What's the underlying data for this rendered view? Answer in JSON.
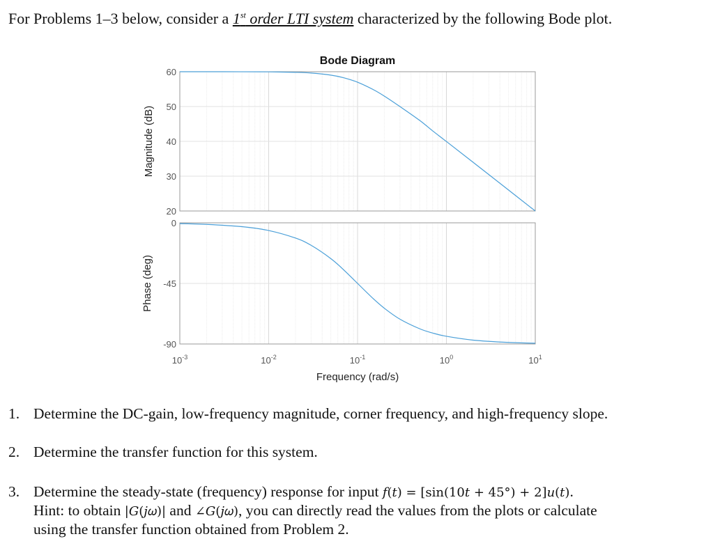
{
  "intro": {
    "before": "For Problems 1–3 below, consider a ",
    "ordinal": "1",
    "ordinal_sup": "st",
    "emphasis": " order LTI system",
    "after": " characterized by the following Bode plot."
  },
  "problems": [
    {
      "number": "1.",
      "text": "Determine the DC-gain, low-frequency magnitude, corner frequency, and high-frequency slope."
    },
    {
      "number": "2.",
      "text": "Determine the transfer function for this system."
    },
    {
      "number": "3.",
      "text": "Determine the steady-state (frequency) response for input ",
      "math": "𝑓(𝑡) = [sin(10𝑡 + 45°) + 2]𝑢(𝑡)",
      "end": ".",
      "hint_a": "Hint: to obtain ",
      "hint_m1": "|𝐺(𝑗𝜔)|",
      "hint_b": " and ",
      "hint_m2": "∠𝐺(𝑗𝜔)",
      "hint_c": ", you can directly read the values from the plots or calculate",
      "hint_line2": "using the transfer function obtained from Problem 2."
    }
  ],
  "chart_data": {
    "type": "line",
    "title": "Bode Diagram",
    "xlabel": "Frequency  (rad/s)",
    "xscale": "log",
    "xlim": [
      0.001,
      10
    ],
    "xticks": [
      {
        "base": "10",
        "exp": "-3"
      },
      {
        "base": "10",
        "exp": "-2"
      },
      {
        "base": "10",
        "exp": "-1"
      },
      {
        "base": "10",
        "exp": "0"
      },
      {
        "base": "10",
        "exp": "1"
      }
    ],
    "grid": true,
    "line_color": "#4a9fd8",
    "x": [
      0.001,
      0.002,
      0.005,
      0.01,
      0.02,
      0.03,
      0.05,
      0.07,
      0.1,
      0.15,
      0.2,
      0.3,
      0.5,
      0.7,
      1,
      2,
      5,
      10
    ],
    "panels": [
      {
        "ylabel": "Magnitude (dB)",
        "ylim": [
          20,
          60
        ],
        "yticks": [
          "60",
          "50",
          "40",
          "30",
          "20"
        ],
        "ytick_values": [
          60,
          50,
          40,
          30,
          20
        ],
        "values": [
          60.0,
          60.0,
          59.99,
          59.96,
          59.83,
          59.63,
          59.03,
          58.27,
          56.99,
          54.88,
          53.01,
          50.0,
          46.02,
          43.01,
          39.96,
          33.98,
          26.02,
          20.0
        ]
      },
      {
        "ylabel": "Phase (deg)",
        "ylim": [
          -90,
          0
        ],
        "yticks": [
          "0",
          "-45",
          "-90"
        ],
        "ytick_values": [
          0,
          -45,
          -90
        ],
        "values": [
          -0.57,
          -1.15,
          -2.86,
          -5.71,
          -11.31,
          -16.7,
          -26.57,
          -34.99,
          -45.0,
          -56.31,
          -63.43,
          -71.57,
          -78.69,
          -81.87,
          -84.29,
          -87.14,
          -88.85,
          -89.43
        ]
      }
    ]
  }
}
